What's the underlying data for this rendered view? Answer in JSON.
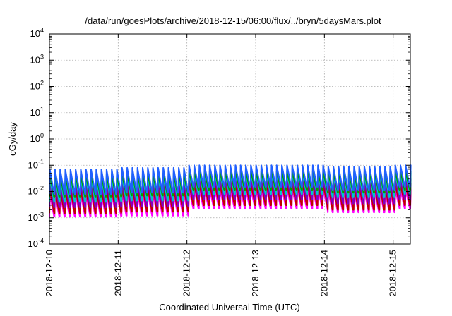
{
  "chart_data": {
    "type": "line",
    "title": "/data/run/goesPlots/archive/2018-12-15/06:00/flux/../bryn/5daysMars.plot",
    "xlabel": "Coordinated Universal Time (UTC)",
    "ylabel": "cGy/day",
    "yscale": "log",
    "ylim": [
      0.0001,
      10000
    ],
    "xlim": [
      "2018-12-10T00:00",
      "2018-12-15T06:00"
    ],
    "grid": true,
    "legend": "none",
    "x_tick_labels": [
      "2018-12-10",
      "2018-12-11",
      "2018-12-12",
      "2018-12-13",
      "2018-12-14",
      "2018-12-15"
    ],
    "y_tick_labels": [
      {
        "base": "10",
        "exp": "-4"
      },
      {
        "base": "10",
        "exp": "-3"
      },
      {
        "base": "10",
        "exp": "-2"
      },
      {
        "base": "10",
        "exp": "-1"
      },
      {
        "base": "10",
        "exp": "0"
      },
      {
        "base": "10",
        "exp": "1"
      },
      {
        "base": "10",
        "exp": "2"
      },
      {
        "base": "10",
        "exp": "3"
      },
      {
        "base": "10",
        "exp": "4"
      }
    ],
    "sawtooth_period_hours": 1.8,
    "series": [
      {
        "color": "#ff00ff",
        "peak": [
          0.008,
          0.009,
          0.012,
          0.013,
          0.011,
          0.012
        ],
        "trough": [
          0.0011,
          0.0012,
          0.0022,
          0.0022,
          0.0016,
          0.0022
        ]
      },
      {
        "color": "#c00000",
        "peak": [
          0.012,
          0.014,
          0.02,
          0.02,
          0.018,
          0.02
        ],
        "trough": [
          0.0015,
          0.0017,
          0.003,
          0.003,
          0.002,
          0.003
        ]
      },
      {
        "color": "#8000c0",
        "peak": [
          0.02,
          0.022,
          0.03,
          0.03,
          0.025,
          0.03
        ],
        "trough": [
          0.0025,
          0.0028,
          0.005,
          0.005,
          0.0035,
          0.005
        ]
      },
      {
        "color": "#00c8c8",
        "peak": [
          0.035,
          0.04,
          0.05,
          0.05,
          0.045,
          0.05
        ],
        "trough": [
          0.004,
          0.0045,
          0.008,
          0.008,
          0.006,
          0.008
        ]
      },
      {
        "color": "#00a000",
        "peak": [
          0.045,
          0.05,
          0.06,
          0.06,
          0.055,
          0.06
        ],
        "trough": [
          0.006,
          0.007,
          0.011,
          0.011,
          0.009,
          0.011
        ]
      },
      {
        "color": "#2060ff",
        "peak": [
          0.07,
          0.08,
          0.1,
          0.1,
          0.09,
          0.1
        ],
        "trough": [
          0.008,
          0.009,
          0.015,
          0.015,
          0.011,
          0.015
        ]
      }
    ]
  }
}
